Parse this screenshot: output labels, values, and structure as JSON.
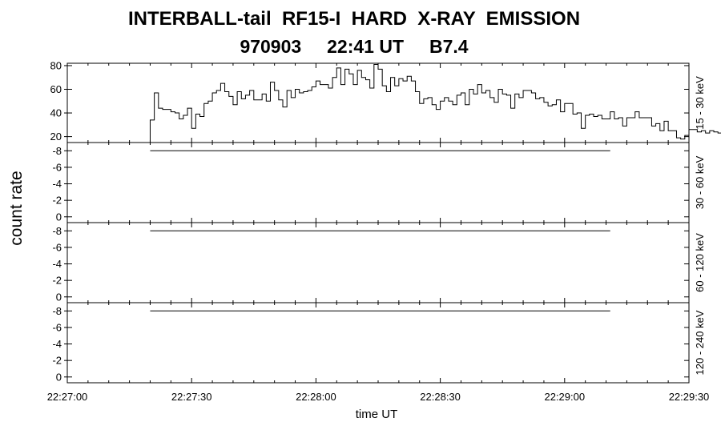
{
  "header": {
    "title": "INTERBALL-tail  RF15-I  HARD  X-RAY  EMISSION",
    "subtitle": "970903     22:41 UT     B7.4"
  },
  "chart_data": {
    "type": "line",
    "title": "INTERBALL-tail  RF15-I  HARD  X-RAY  EMISSION",
    "subtitle": "970903     22:41 UT     B7.4",
    "xlabel": "time UT",
    "ylabel": "count rate",
    "x_ticks": [
      "22:27:00",
      "22:27:30",
      "22:28:00",
      "22:28:30",
      "22:29:00",
      "22:29:30"
    ],
    "xlim": [
      "22:27:00",
      "22:29:30"
    ],
    "panels": [
      {
        "name": "15 - 30 keV",
        "ylim": [
          15,
          82
        ],
        "y_ticks": [
          20,
          40,
          60,
          80
        ],
        "series": [
          {
            "x_start": "22:27:20",
            "step_seconds": 1,
            "values": [
              34,
              57,
              44,
              43,
              43,
              41,
              40,
              35,
              38,
              44,
              27,
              39,
              37,
              48,
              50,
              57,
              59,
              65,
              58,
              54,
              47,
              58,
              52,
              55,
              59,
              51,
              51,
              56,
              50,
              66,
              59,
              51,
              45,
              59,
              53,
              60,
              57,
              58,
              59,
              62,
              67,
              64,
              64,
              61,
              70,
              78,
              64,
              77,
              73,
              64,
              76,
              70,
              68,
              61,
              81,
              77,
              63,
              58,
              70,
              63,
              69,
              67,
              71,
              67,
              58,
              48,
              52,
              53,
              47,
              43,
              50,
              53,
              50,
              47,
              55,
              57,
              47,
              60,
              56,
              64,
              57,
              59,
              53,
              49,
              60,
              56,
              55,
              44,
              56,
              53,
              59,
              59,
              57,
              52,
              53,
              49,
              46,
              47,
              51,
              41,
              48,
              48,
              39,
              40,
              27,
              38,
              39,
              37,
              38,
              35,
              35,
              41,
              35,
              36,
              29,
              36,
              36,
              41,
              36,
              36,
              36,
              29,
              31,
              25,
              33,
              25,
              25,
              19,
              18,
              21,
              26,
              26,
              24,
              25,
              23,
              25,
              24,
              23,
              23,
              15,
              30
            ]
          }
        ]
      },
      {
        "name": "30 - 60 keV",
        "ylim": [
          0.7,
          -9.0
        ],
        "y_ticks": [
          0,
          -2,
          -4,
          -6,
          -8
        ],
        "series": [
          {
            "x": [
              "22:27:20",
              "22:29:11"
            ],
            "values": [
              -8,
              -8
            ]
          }
        ]
      },
      {
        "name": "60 - 120 keV",
        "ylim": [
          0.7,
          -9.0
        ],
        "y_ticks": [
          0,
          -2,
          -4,
          -6,
          -8
        ],
        "series": [
          {
            "x": [
              "22:27:20",
              "22:29:11"
            ],
            "values": [
              -8,
              -8
            ]
          }
        ]
      },
      {
        "name": "120 - 240 keV",
        "ylim": [
          0.7,
          -9.0
        ],
        "y_ticks": [
          0,
          -2,
          -4,
          -6,
          -8
        ],
        "series": [
          {
            "x": [
              "22:27:20",
              "22:29:11"
            ],
            "values": [
              -8,
              -8
            ]
          }
        ]
      }
    ],
    "grid": false
  }
}
